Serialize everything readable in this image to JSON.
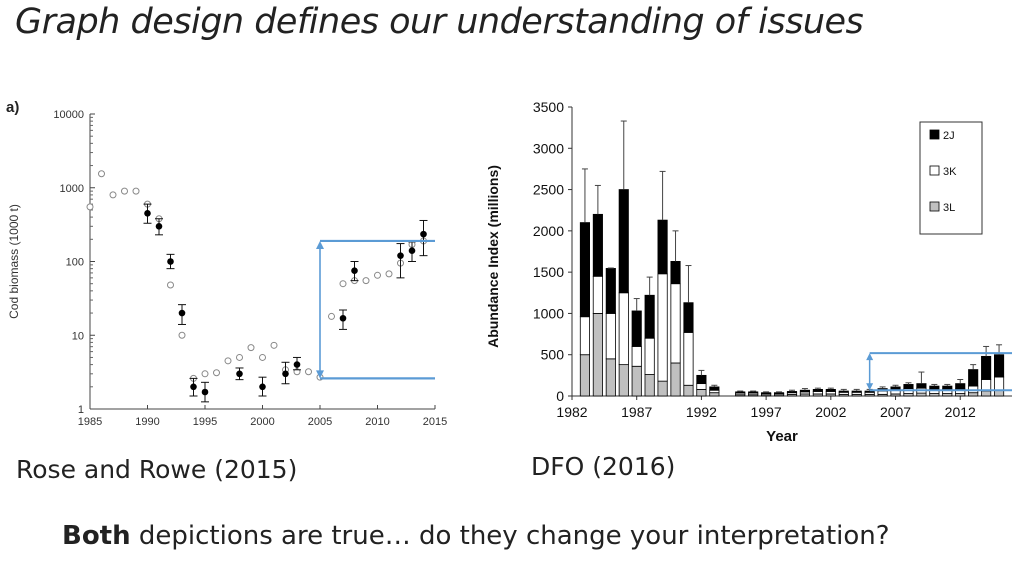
{
  "slide": {
    "title": "Graph design defines our understanding of issues",
    "caption_left": "Rose and Rowe (2015)",
    "caption_right": "DFO (2016)",
    "bottom_bold": "Both",
    "bottom_rest": " depictions are true… do they change your interpretation?"
  },
  "chart_data": [
    {
      "type": "scatter",
      "panel_label": "a)",
      "ylabel": "Cod biomass (1000 t)",
      "y_scale": "log",
      "ylim": [
        1,
        10000
      ],
      "xlim": [
        1985,
        2015
      ],
      "x_ticks": [
        1985,
        1990,
        1995,
        2000,
        2005,
        2010,
        2015
      ],
      "y_ticks": [
        1,
        10,
        100,
        1000,
        10000
      ],
      "series": [
        {
          "marker": "open-circle",
          "points": [
            [
              1985,
              550
            ],
            [
              1986,
              1550
            ],
            [
              1987,
              800
            ],
            [
              1988,
              900
            ],
            [
              1989,
              900
            ],
            [
              1990,
              600
            ],
            [
              1991,
              380
            ],
            [
              1992,
              48
            ],
            [
              1993,
              10
            ],
            [
              1994,
              2.6
            ],
            [
              1995,
              3
            ],
            [
              1996,
              3.1
            ],
            [
              1997,
              4.5
            ],
            [
              1998,
              5
            ],
            [
              1999,
              6.8
            ],
            [
              2000,
              5
            ],
            [
              2001,
              7.3
            ],
            [
              2002,
              3.4
            ],
            [
              2003,
              3.2
            ],
            [
              2004,
              3.2
            ],
            [
              2005,
              2.7
            ],
            [
              2006,
              18
            ],
            [
              2007,
              50
            ],
            [
              2008,
              55
            ],
            [
              2009,
              55
            ],
            [
              2010,
              65
            ],
            [
              2011,
              68
            ],
            [
              2012,
              95
            ],
            [
              2013,
              170
            ],
            [
              2014,
              190
            ]
          ]
        },
        {
          "marker": "filled-circle",
          "points": [
            [
              1990,
              450
            ],
            [
              1991,
              300
            ],
            [
              1992,
              100
            ],
            [
              1993,
              20
            ],
            [
              1994,
              2
            ],
            [
              1995,
              1.7
            ],
            [
              1998,
              3
            ],
            [
              2000,
              2
            ],
            [
              2002,
              3
            ],
            [
              2003,
              4
            ],
            [
              2007,
              17
            ],
            [
              2008,
              75
            ],
            [
              2012,
              120
            ],
            [
              2013,
              140
            ],
            [
              2014,
              235
            ]
          ],
          "error_low": [
            330,
            230,
            80,
            14,
            1.5,
            1.25,
            2.5,
            1.5,
            2.2,
            3.4,
            12,
            55,
            60,
            100,
            120
          ],
          "error_high": [
            600,
            380,
            125,
            26,
            2.6,
            2.3,
            3.6,
            2.7,
            4.3,
            5,
            22,
            100,
            175,
            185,
            360
          ]
        }
      ],
      "annotation": {
        "from_x": 2005,
        "from_y": 2.6,
        "to_y": 190,
        "line_color": "#5b9bd5"
      }
    },
    {
      "type": "bar",
      "stacked": true,
      "xlabel": "Year",
      "ylabel": "Abundance Index (millions)",
      "ylim": [
        0,
        3500
      ],
      "y_ticks": [
        0,
        500,
        1000,
        1500,
        2000,
        2500,
        3000,
        3500
      ],
      "x_ticks": [
        1982,
        1987,
        1992,
        1997,
        2002,
        2007,
        2012
      ],
      "legend_position": "top-right",
      "categories": [
        1983,
        1984,
        1985,
        1986,
        1987,
        1988,
        1989,
        1990,
        1991,
        1992,
        1993,
        1995,
        1996,
        1997,
        1998,
        1999,
        2000,
        2001,
        2002,
        2003,
        2004,
        2005,
        2006,
        2007,
        2008,
        2009,
        2010,
        2011,
        2012,
        2013,
        2014,
        2015
      ],
      "series": [
        {
          "name": "3L",
          "color": "#c0c0c0",
          "values": [
            500,
            1000,
            450,
            380,
            360,
            260,
            180,
            400,
            130,
            80,
            40,
            15,
            15,
            15,
            15,
            20,
            25,
            25,
            25,
            20,
            20,
            20,
            20,
            25,
            30,
            35,
            30,
            30,
            30,
            40,
            60,
            70
          ]
        },
        {
          "name": "3K",
          "color": "#ffffff",
          "values": [
            460,
            450,
            550,
            870,
            240,
            440,
            1300,
            960,
            640,
            70,
            30,
            20,
            20,
            15,
            15,
            20,
            25,
            30,
            30,
            25,
            25,
            25,
            40,
            45,
            60,
            60,
            50,
            55,
            55,
            80,
            140,
            160
          ]
        },
        {
          "name": "2J",
          "color": "#000000",
          "values": [
            1140,
            750,
            545,
            1250,
            430,
            520,
            650,
            270,
            360,
            100,
            40,
            15,
            15,
            10,
            10,
            15,
            20,
            25,
            25,
            15,
            15,
            15,
            30,
            40,
            50,
            55,
            40,
            35,
            65,
            200,
            280,
            270
          ]
        }
      ],
      "error_top": [
        2750,
        2550,
        1550,
        3330,
        1180,
        1440,
        2720,
        2000,
        1580,
        310,
        130,
        60,
        60,
        50,
        50,
        70,
        90,
        95,
        95,
        80,
        80,
        80,
        110,
        130,
        160,
        290,
        140,
        140,
        200,
        380,
        600,
        620
      ],
      "annotation": {
        "from_x": 2005,
        "from_y": 70,
        "to_y": 520,
        "line_color": "#5b9bd5"
      }
    }
  ]
}
